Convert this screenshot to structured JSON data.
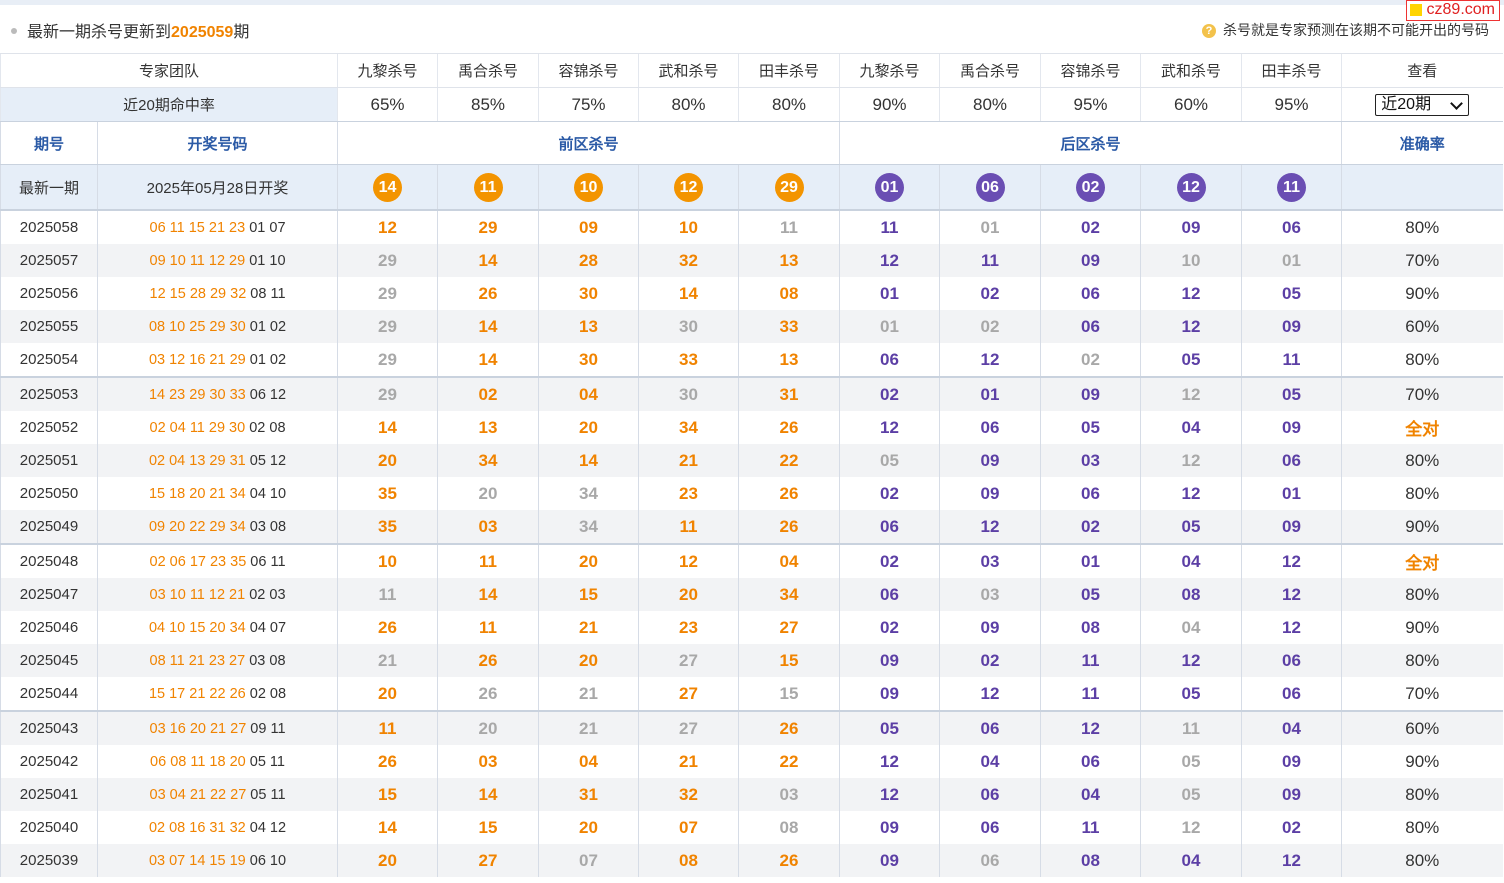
{
  "watermark": "cz89.com",
  "header": {
    "prefix": "最新一期杀号更新到",
    "period": "2025059",
    "suffix": "期",
    "hint": "杀号就是专家预测在该期不可能开出的号码"
  },
  "experts": {
    "team_label": "专家团队",
    "names": [
      "九黎杀号",
      "禹合杀号",
      "容锦杀号",
      "武和杀号",
      "田丰杀号",
      "九黎杀号",
      "禹合杀号",
      "容锦杀号",
      "武和杀号",
      "田丰杀号"
    ],
    "view_label": "查看",
    "rate_label": "近20期命中率",
    "rates": [
      "65%",
      "85%",
      "75%",
      "80%",
      "80%",
      "90%",
      "80%",
      "95%",
      "60%",
      "95%"
    ],
    "select_value": "近20期"
  },
  "columns": {
    "period": "期号",
    "draw": "开奖号码",
    "front": "前区杀号",
    "back": "后区杀号",
    "accuracy": "准确率"
  },
  "latest": {
    "label": "最新一期",
    "draw": "2025年05月28日开奖",
    "front": [
      "14",
      "11",
      "10",
      "12",
      "29"
    ],
    "back": [
      "01",
      "06",
      "02",
      "12",
      "11"
    ]
  },
  "colors": {
    "front": "#f08300",
    "back": "#5c3fa5",
    "miss": "#a8a8a8",
    "header_blue": "#2b5aa6"
  },
  "rows": [
    {
      "p": "2025058",
      "w": "06 11 15 21 23",
      "b": "01 07",
      "k": [
        "12",
        "29",
        "09",
        "10",
        "11",
        "11",
        "01",
        "02",
        "09",
        "06"
      ],
      "m": [
        0,
        0,
        0,
        0,
        1,
        0,
        1,
        0,
        0,
        0
      ],
      "a": "80%"
    },
    {
      "p": "2025057",
      "w": "09 10 11 12 29",
      "b": "01 10",
      "k": [
        "29",
        "14",
        "28",
        "32",
        "13",
        "12",
        "11",
        "09",
        "10",
        "01"
      ],
      "m": [
        1,
        0,
        0,
        0,
        0,
        0,
        0,
        0,
        1,
        1
      ],
      "a": "70%"
    },
    {
      "p": "2025056",
      "w": "12 15 28 29 32",
      "b": "08 11",
      "k": [
        "29",
        "26",
        "30",
        "14",
        "08",
        "01",
        "02",
        "06",
        "12",
        "05"
      ],
      "m": [
        1,
        0,
        0,
        0,
        0,
        0,
        0,
        0,
        0,
        0
      ],
      "a": "90%"
    },
    {
      "p": "2025055",
      "w": "08 10 25 29 30",
      "b": "01 02",
      "k": [
        "29",
        "14",
        "13",
        "30",
        "33",
        "01",
        "02",
        "06",
        "12",
        "09"
      ],
      "m": [
        1,
        0,
        0,
        1,
        0,
        1,
        1,
        0,
        0,
        0
      ],
      "a": "60%"
    },
    {
      "p": "2025054",
      "w": "03 12 16 21 29",
      "b": "01 02",
      "k": [
        "29",
        "14",
        "30",
        "33",
        "13",
        "06",
        "12",
        "02",
        "05",
        "11"
      ],
      "m": [
        1,
        0,
        0,
        0,
        0,
        0,
        0,
        1,
        0,
        0
      ],
      "a": "80%"
    },
    {
      "p": "2025053",
      "w": "14 23 29 30 33",
      "b": "06 12",
      "k": [
        "29",
        "02",
        "04",
        "30",
        "31",
        "02",
        "01",
        "09",
        "12",
        "05"
      ],
      "m": [
        1,
        0,
        0,
        1,
        0,
        0,
        0,
        0,
        1,
        0
      ],
      "a": "70%"
    },
    {
      "p": "2025052",
      "w": "02 04 11 29 30",
      "b": "02 08",
      "k": [
        "14",
        "13",
        "20",
        "34",
        "26",
        "12",
        "06",
        "05",
        "04",
        "09"
      ],
      "m": [
        0,
        0,
        0,
        0,
        0,
        0,
        0,
        0,
        0,
        0
      ],
      "a": "全对"
    },
    {
      "p": "2025051",
      "w": "02 04 13 29 31",
      "b": "05 12",
      "k": [
        "20",
        "34",
        "14",
        "21",
        "22",
        "05",
        "09",
        "03",
        "12",
        "06"
      ],
      "m": [
        0,
        0,
        0,
        0,
        0,
        1,
        0,
        0,
        1,
        0
      ],
      "a": "80%"
    },
    {
      "p": "2025050",
      "w": "15 18 20 21 34",
      "b": "04 10",
      "k": [
        "35",
        "20",
        "34",
        "23",
        "26",
        "02",
        "09",
        "06",
        "12",
        "01"
      ],
      "m": [
        0,
        1,
        1,
        0,
        0,
        0,
        0,
        0,
        0,
        0
      ],
      "a": "80%"
    },
    {
      "p": "2025049",
      "w": "09 20 22 29 34",
      "b": "03 08",
      "k": [
        "35",
        "03",
        "34",
        "11",
        "26",
        "06",
        "12",
        "02",
        "05",
        "09"
      ],
      "m": [
        0,
        0,
        1,
        0,
        0,
        0,
        0,
        0,
        0,
        0
      ],
      "a": "90%"
    },
    {
      "p": "2025048",
      "w": "02 06 17 23 35",
      "b": "06 11",
      "k": [
        "10",
        "11",
        "20",
        "12",
        "04",
        "02",
        "03",
        "01",
        "04",
        "12"
      ],
      "m": [
        0,
        0,
        0,
        0,
        0,
        0,
        0,
        0,
        0,
        0
      ],
      "a": "全对"
    },
    {
      "p": "2025047",
      "w": "03 10 11 12 21",
      "b": "02 03",
      "k": [
        "11",
        "14",
        "15",
        "20",
        "34",
        "06",
        "03",
        "05",
        "08",
        "12"
      ],
      "m": [
        1,
        0,
        0,
        0,
        0,
        0,
        1,
        0,
        0,
        0
      ],
      "a": "80%"
    },
    {
      "p": "2025046",
      "w": "04 10 15 20 34",
      "b": "04 07",
      "k": [
        "26",
        "11",
        "21",
        "23",
        "27",
        "02",
        "09",
        "08",
        "04",
        "12"
      ],
      "m": [
        0,
        0,
        0,
        0,
        0,
        0,
        0,
        0,
        1,
        0
      ],
      "a": "90%"
    },
    {
      "p": "2025045",
      "w": "08 11 21 23 27",
      "b": "03 08",
      "k": [
        "21",
        "26",
        "20",
        "27",
        "15",
        "09",
        "02",
        "11",
        "12",
        "06"
      ],
      "m": [
        1,
        0,
        0,
        1,
        0,
        0,
        0,
        0,
        0,
        0
      ],
      "a": "80%"
    },
    {
      "p": "2025044",
      "w": "15 17 21 22 26",
      "b": "02 08",
      "k": [
        "20",
        "26",
        "21",
        "27",
        "15",
        "09",
        "12",
        "11",
        "05",
        "06"
      ],
      "m": [
        0,
        1,
        1,
        0,
        1,
        0,
        0,
        0,
        0,
        0
      ],
      "a": "70%"
    },
    {
      "p": "2025043",
      "w": "03 16 20 21 27",
      "b": "09 11",
      "k": [
        "11",
        "20",
        "21",
        "27",
        "26",
        "05",
        "06",
        "12",
        "11",
        "04"
      ],
      "m": [
        0,
        1,
        1,
        1,
        0,
        0,
        0,
        0,
        1,
        0
      ],
      "a": "60%"
    },
    {
      "p": "2025042",
      "w": "06 08 11 18 20",
      "b": "05 11",
      "k": [
        "26",
        "03",
        "04",
        "21",
        "22",
        "12",
        "04",
        "06",
        "05",
        "09"
      ],
      "m": [
        0,
        0,
        0,
        0,
        0,
        0,
        0,
        0,
        1,
        0
      ],
      "a": "90%"
    },
    {
      "p": "2025041",
      "w": "03 04 21 22 27",
      "b": "05 11",
      "k": [
        "15",
        "14",
        "31",
        "32",
        "03",
        "12",
        "06",
        "04",
        "05",
        "09"
      ],
      "m": [
        0,
        0,
        0,
        0,
        1,
        0,
        0,
        0,
        1,
        0
      ],
      "a": "80%"
    },
    {
      "p": "2025040",
      "w": "02 08 16 31 32",
      "b": "04 12",
      "k": [
        "14",
        "15",
        "20",
        "07",
        "08",
        "09",
        "06",
        "11",
        "12",
        "02"
      ],
      "m": [
        0,
        0,
        0,
        0,
        1,
        0,
        0,
        0,
        1,
        0
      ],
      "a": "80%"
    },
    {
      "p": "2025039",
      "w": "03 07 14 15 19",
      "b": "06 10",
      "k": [
        "20",
        "27",
        "07",
        "08",
        "26",
        "09",
        "06",
        "08",
        "04",
        "12"
      ],
      "m": [
        0,
        0,
        1,
        0,
        0,
        0,
        1,
        0,
        0,
        0
      ],
      "a": "80%"
    }
  ]
}
